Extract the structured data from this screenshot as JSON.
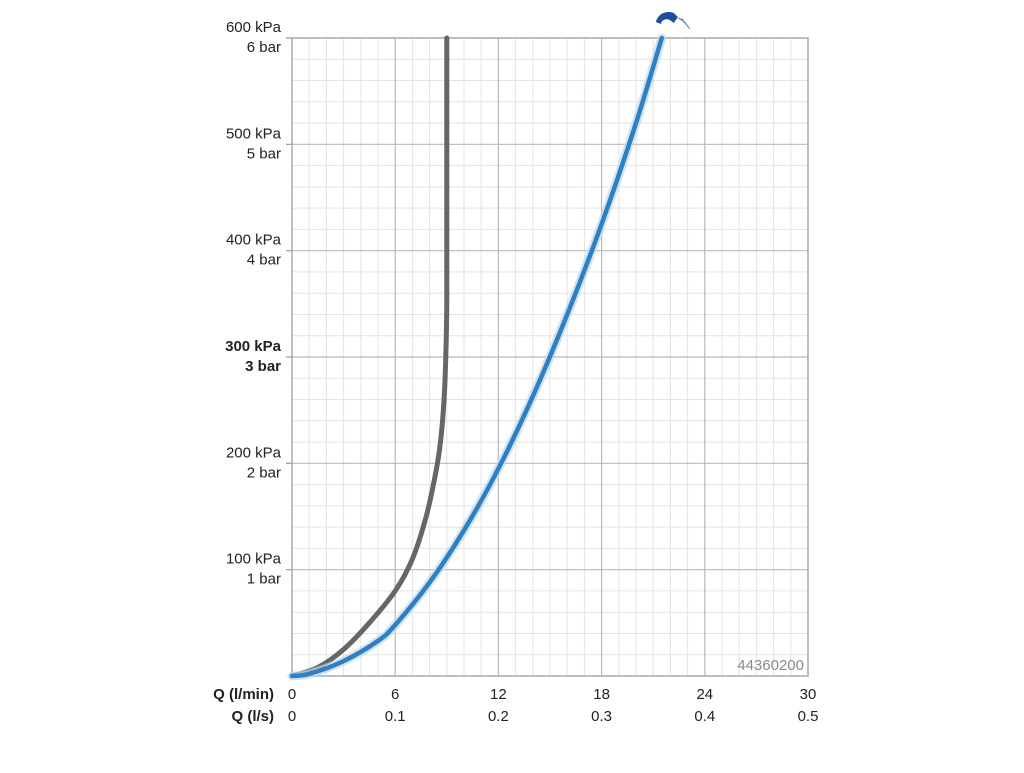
{
  "chart_data": {
    "type": "line",
    "reference_code": "44360200",
    "x_axes": [
      {
        "label": "Q (l/min)",
        "ticks": [
          "0",
          "6",
          "12",
          "18",
          "24",
          "30"
        ],
        "range": [
          0,
          30
        ]
      },
      {
        "label": "Q (l/s)",
        "ticks": [
          "0",
          "0.1",
          "0.2",
          "0.3",
          "0.4",
          "0.5"
        ],
        "range": [
          0,
          0.5
        ]
      }
    ],
    "y_axis": {
      "range": [
        0,
        600
      ],
      "ticks": [
        {
          "value": 100,
          "kpa": "100 kPa",
          "bar": "1 bar",
          "emphasis": false
        },
        {
          "value": 200,
          "kpa": "200 kPa",
          "bar": "2 bar",
          "emphasis": false
        },
        {
          "value": 300,
          "kpa": "300 kPa",
          "bar": "3 bar",
          "emphasis": true
        },
        {
          "value": 400,
          "kpa": "400 kPa",
          "bar": "4 bar",
          "emphasis": false
        },
        {
          "value": 500,
          "kpa": "500 kPa",
          "bar": "5 bar",
          "emphasis": false
        },
        {
          "value": 600,
          "kpa": "600 kPa",
          "bar": "6 bar",
          "emphasis": false
        }
      ]
    },
    "grid": true,
    "series": [
      {
        "color": "#666666",
        "x": [
          0,
          1.5,
          3,
          4.5,
          6,
          7,
          7.8,
          8.4,
          8.7,
          8.9,
          9.0,
          9.0,
          9.0
        ],
        "y": [
          0,
          8,
          25,
          50,
          80,
          110,
          150,
          195,
          230,
          280,
          350,
          450,
          600
        ]
      },
      {
        "color": "#2f7fc1",
        "x": [
          0,
          1,
          3,
          5,
          6,
          8,
          10,
          12,
          14,
          16,
          18,
          20,
          21.5
        ],
        "y": [
          0,
          2,
          14,
          33,
          48,
          88,
          137,
          195,
          263,
          340,
          425,
          520,
          600
        ]
      }
    ],
    "icon": "shower-head-icon"
  }
}
